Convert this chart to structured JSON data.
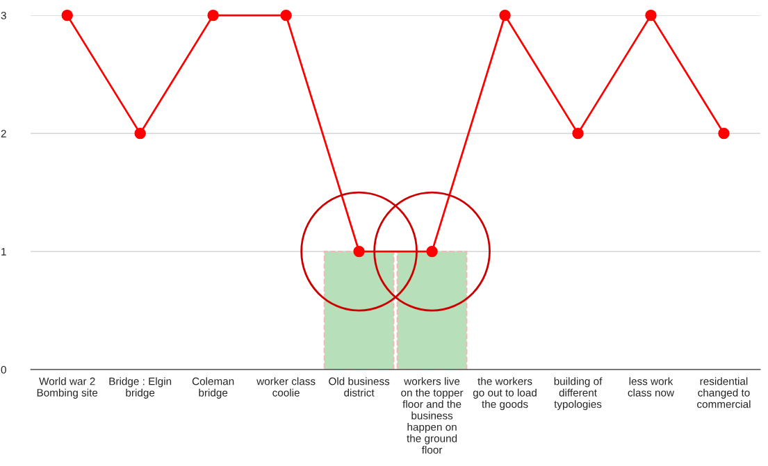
{
  "chart_data": {
    "type": "line",
    "categories": [
      "World war 2\nBombing site",
      "Bridge : Elgin\nbridge",
      "Coleman\nbridge",
      "worker class\ncoolie",
      "Old business\ndistrict",
      "workers live\non the topper\nfloor and the\nbusiness\nhappen on\nthe ground\nfloor",
      "the workers\ngo out to load\nthe goods",
      "building of\ndifferent\ntypologies",
      "less work\nclass now",
      "residential\nchanged to\ncommercial"
    ],
    "series": [
      {
        "type": "bar",
        "color": "#b7dfb9",
        "values": [
          null,
          null,
          null,
          null,
          1,
          1,
          null,
          null,
          null,
          null
        ]
      },
      {
        "color": "#ff0000",
        "values": [
          3,
          2,
          3,
          3,
          1,
          1,
          3,
          2,
          3,
          2
        ]
      }
    ],
    "ylim": [
      0,
      3
    ],
    "yticks": [
      0,
      1,
      2,
      3
    ],
    "grid": "y",
    "marker": "circle",
    "line_style": "solid",
    "legend": false
  }
}
